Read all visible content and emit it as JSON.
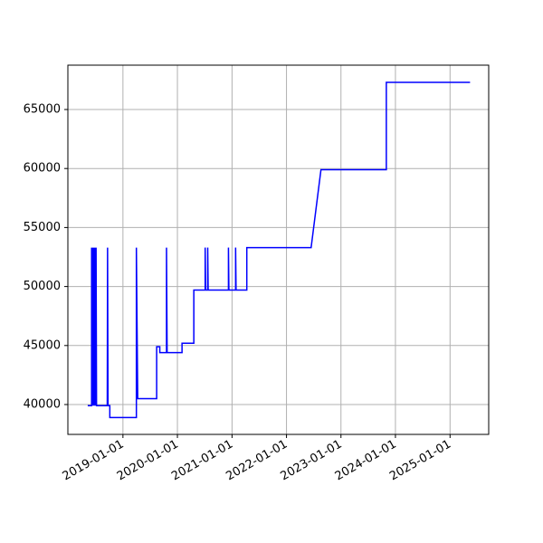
{
  "chart_data": {
    "type": "line",
    "x": [
      "2018-05-10",
      "2018-06-05",
      "2018-06-05",
      "2018-06-08",
      "2018-06-12",
      "2018-06-15",
      "2018-06-20",
      "2018-06-24",
      "2018-06-28",
      "2018-07-02",
      "2018-07-05",
      "2018-07-08",
      "2018-09-18",
      "2018-09-20",
      "2018-09-23",
      "2018-10-05",
      "2018-10-05",
      "2019-04-01",
      "2019-04-01",
      "2019-04-10",
      "2019-08-15",
      "2019-08-15",
      "2019-09-05",
      "2019-09-05",
      "2019-10-20",
      "2019-10-20",
      "2019-10-24",
      "2020-02-01",
      "2020-02-01",
      "2020-04-20",
      "2020-04-20",
      "2020-07-05",
      "2020-07-05",
      "2020-07-08",
      "2020-07-22",
      "2020-07-22",
      "2020-07-25",
      "2020-12-08",
      "2020-12-08",
      "2020-12-11",
      "2021-01-25",
      "2021-01-25",
      "2021-01-28",
      "2021-04-10",
      "2021-04-10",
      "2022-06-15",
      "2022-08-20",
      "2023-11-01",
      "2023-11-01",
      "2025-05-15"
    ],
    "series": [
      {
        "color": "#0000ff",
        "values": [
          39900,
          39900,
          53300,
          39900,
          53300,
          39900,
          53300,
          39900,
          53300,
          39900,
          53300,
          39900,
          39900,
          53300,
          39900,
          39900,
          38900,
          38900,
          53300,
          40500,
          40500,
          44900,
          44900,
          44400,
          44400,
          53300,
          44400,
          44400,
          45200,
          45200,
          49700,
          49700,
          53300,
          49700,
          49700,
          53300,
          49700,
          49700,
          53300,
          49700,
          49700,
          53300,
          49700,
          49700,
          53300,
          53300,
          59900,
          59900,
          67300,
          67300
        ]
      }
    ],
    "xlim": [
      "2017-12-28",
      "2025-09-17"
    ],
    "xticks": [
      "2019-01-01",
      "2020-01-01",
      "2021-01-01",
      "2022-01-01",
      "2023-01-01",
      "2024-01-01",
      "2025-01-01"
    ],
    "ylim": [
      37469,
      68758
    ],
    "yticks": [
      40000,
      45000,
      50000,
      55000,
      60000,
      65000
    ],
    "grid": true
  }
}
